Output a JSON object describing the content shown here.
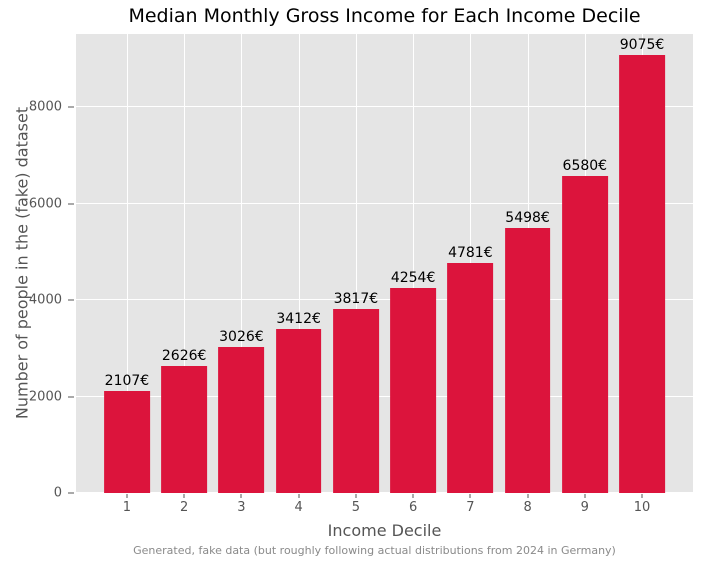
{
  "chart_data": {
    "type": "bar",
    "title": "Median Monthly Gross Income for Each Income Decile",
    "xlabel": "Income Decile",
    "ylabel": "Number of people in the (fake) dataset",
    "footnote": "Generated, fake data (but roughly following actual distributions from 2024 in Germany)",
    "categories": [
      "1",
      "2",
      "3",
      "4",
      "5",
      "6",
      "7",
      "8",
      "9",
      "10"
    ],
    "values": [
      2107,
      2626,
      3026,
      3412,
      3817,
      4254,
      4781,
      5498,
      6580,
      9075
    ],
    "bar_labels": [
      "2107€",
      "2626€",
      "3026€",
      "3412€",
      "3817€",
      "4254€",
      "4781€",
      "5498€",
      "6580€",
      "9075€"
    ],
    "yticks": [
      0,
      2000,
      4000,
      6000,
      8000
    ],
    "ylim": [
      0,
      9520
    ],
    "xlim": [
      0.11,
      10.89
    ],
    "bar_width": 0.8,
    "grid": true,
    "legend": "none",
    "colors": {
      "bar": "#DC143C",
      "plot_bg": "#E5E5E5",
      "grid": "#FFFFFF",
      "title": "#000000",
      "axis_label": "#555555",
      "tick_label": "#555555",
      "tick_mark": "#555555",
      "bar_label": "#000000",
      "footnote": "#8A8A8A",
      "figure_bg": "#FFFFFF"
    }
  }
}
